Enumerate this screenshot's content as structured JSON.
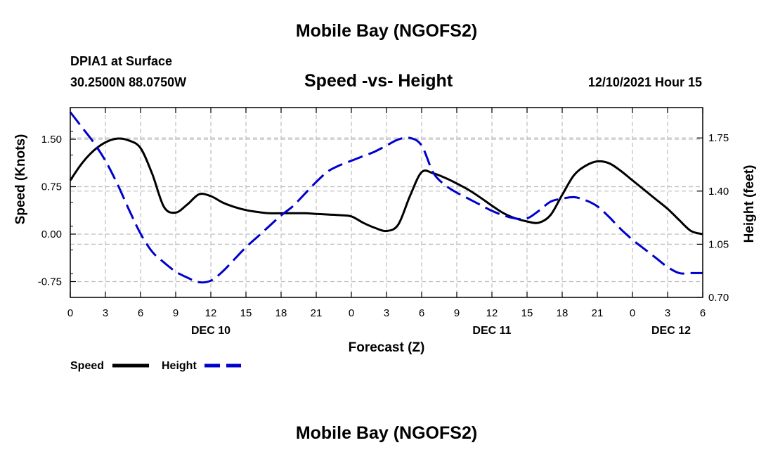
{
  "page_title_top": "Mobile Bay (NGOFS2)",
  "page_title_bottom": "Mobile Bay (NGOFS2)",
  "station": {
    "name": "DPIA1 at Surface",
    "coords": "30.2500N  88.0750W"
  },
  "timestamp": "12/10/2021 Hour 15",
  "chart_data": {
    "type": "line",
    "title": "Speed -vs- Height",
    "xlabel": "Forecast (Z)",
    "ylabel_left": "Speed (Knots)",
    "ylabel_right": "Height (feet)",
    "x_ticks": [
      "0",
      "3",
      "6",
      "9",
      "12",
      "15",
      "18",
      "21",
      "0",
      "3",
      "6",
      "9",
      "12",
      "15",
      "18",
      "21",
      "0",
      "3",
      "6"
    ],
    "x_day_labels": [
      {
        "label": "DEC 10",
        "at_hour": 12
      },
      {
        "label": "DEC 11",
        "at_hour": 36
      },
      {
        "label": "DEC 12",
        "at_hour": 60
      }
    ],
    "x_range": [
      0,
      54
    ],
    "y_left_range": [
      -1.0,
      2.0
    ],
    "y_left_ticks": [
      "-0.75",
      "0.00",
      "0.75",
      "1.50"
    ],
    "y_right_range": [
      0.7,
      1.95
    ],
    "y_right_ticks": [
      "0.70",
      "1.05",
      "1.40",
      "1.75"
    ],
    "grid": true,
    "legend_position": "bottom-left",
    "series": [
      {
        "name": "Speed",
        "axis": "left",
        "color": "#000000",
        "dash": "solid",
        "x": [
          0,
          1,
          2,
          3,
          4,
          5,
          6,
          7,
          8,
          9,
          10,
          11,
          12,
          13,
          14,
          15,
          16,
          17,
          18,
          19,
          20,
          21,
          22,
          23,
          24,
          25,
          26,
          27,
          28,
          29,
          30,
          31,
          32,
          33,
          34,
          35,
          36,
          37,
          38,
          39,
          40,
          41,
          42,
          43,
          44,
          45,
          46,
          47,
          48,
          49,
          50,
          51,
          52,
          53,
          54
        ],
        "values": [
          0.85,
          1.12,
          1.32,
          1.45,
          1.51,
          1.48,
          1.36,
          0.95,
          0.43,
          0.34,
          0.47,
          0.63,
          0.6,
          0.5,
          0.43,
          0.38,
          0.35,
          0.33,
          0.33,
          0.33,
          0.33,
          0.32,
          0.31,
          0.3,
          0.28,
          0.18,
          0.1,
          0.05,
          0.15,
          0.6,
          0.98,
          0.96,
          0.89,
          0.8,
          0.7,
          0.58,
          0.45,
          0.33,
          0.25,
          0.2,
          0.18,
          0.3,
          0.62,
          0.93,
          1.08,
          1.15,
          1.12,
          1.0,
          0.85,
          0.7,
          0.55,
          0.4,
          0.22,
          0.05,
          0.0
        ]
      },
      {
        "name": "Height",
        "axis": "right",
        "color": "#0000cc",
        "dash": "dashed",
        "x": [
          0,
          1,
          2,
          3,
          4,
          5,
          6,
          7,
          8,
          9,
          10,
          11,
          12,
          13,
          14,
          15,
          16,
          17,
          18,
          19,
          20,
          21,
          22,
          23,
          24,
          25,
          26,
          27,
          28,
          29,
          30,
          31,
          32,
          33,
          34,
          35,
          36,
          37,
          38,
          39,
          40,
          41,
          42,
          43,
          44,
          45,
          46,
          47,
          48,
          49,
          50,
          51,
          52,
          53,
          54
        ],
        "values": [
          1.92,
          1.82,
          1.72,
          1.6,
          1.45,
          1.28,
          1.12,
          1.0,
          0.93,
          0.87,
          0.83,
          0.8,
          0.81,
          0.87,
          0.95,
          1.03,
          1.1,
          1.17,
          1.24,
          1.3,
          1.38,
          1.46,
          1.53,
          1.57,
          1.6,
          1.63,
          1.66,
          1.7,
          1.74,
          1.75,
          1.7,
          1.52,
          1.44,
          1.39,
          1.35,
          1.31,
          1.27,
          1.24,
          1.22,
          1.22,
          1.27,
          1.33,
          1.35,
          1.36,
          1.34,
          1.3,
          1.23,
          1.15,
          1.08,
          1.02,
          0.96,
          0.9,
          0.86,
          0.86,
          0.86
        ]
      }
    ]
  }
}
